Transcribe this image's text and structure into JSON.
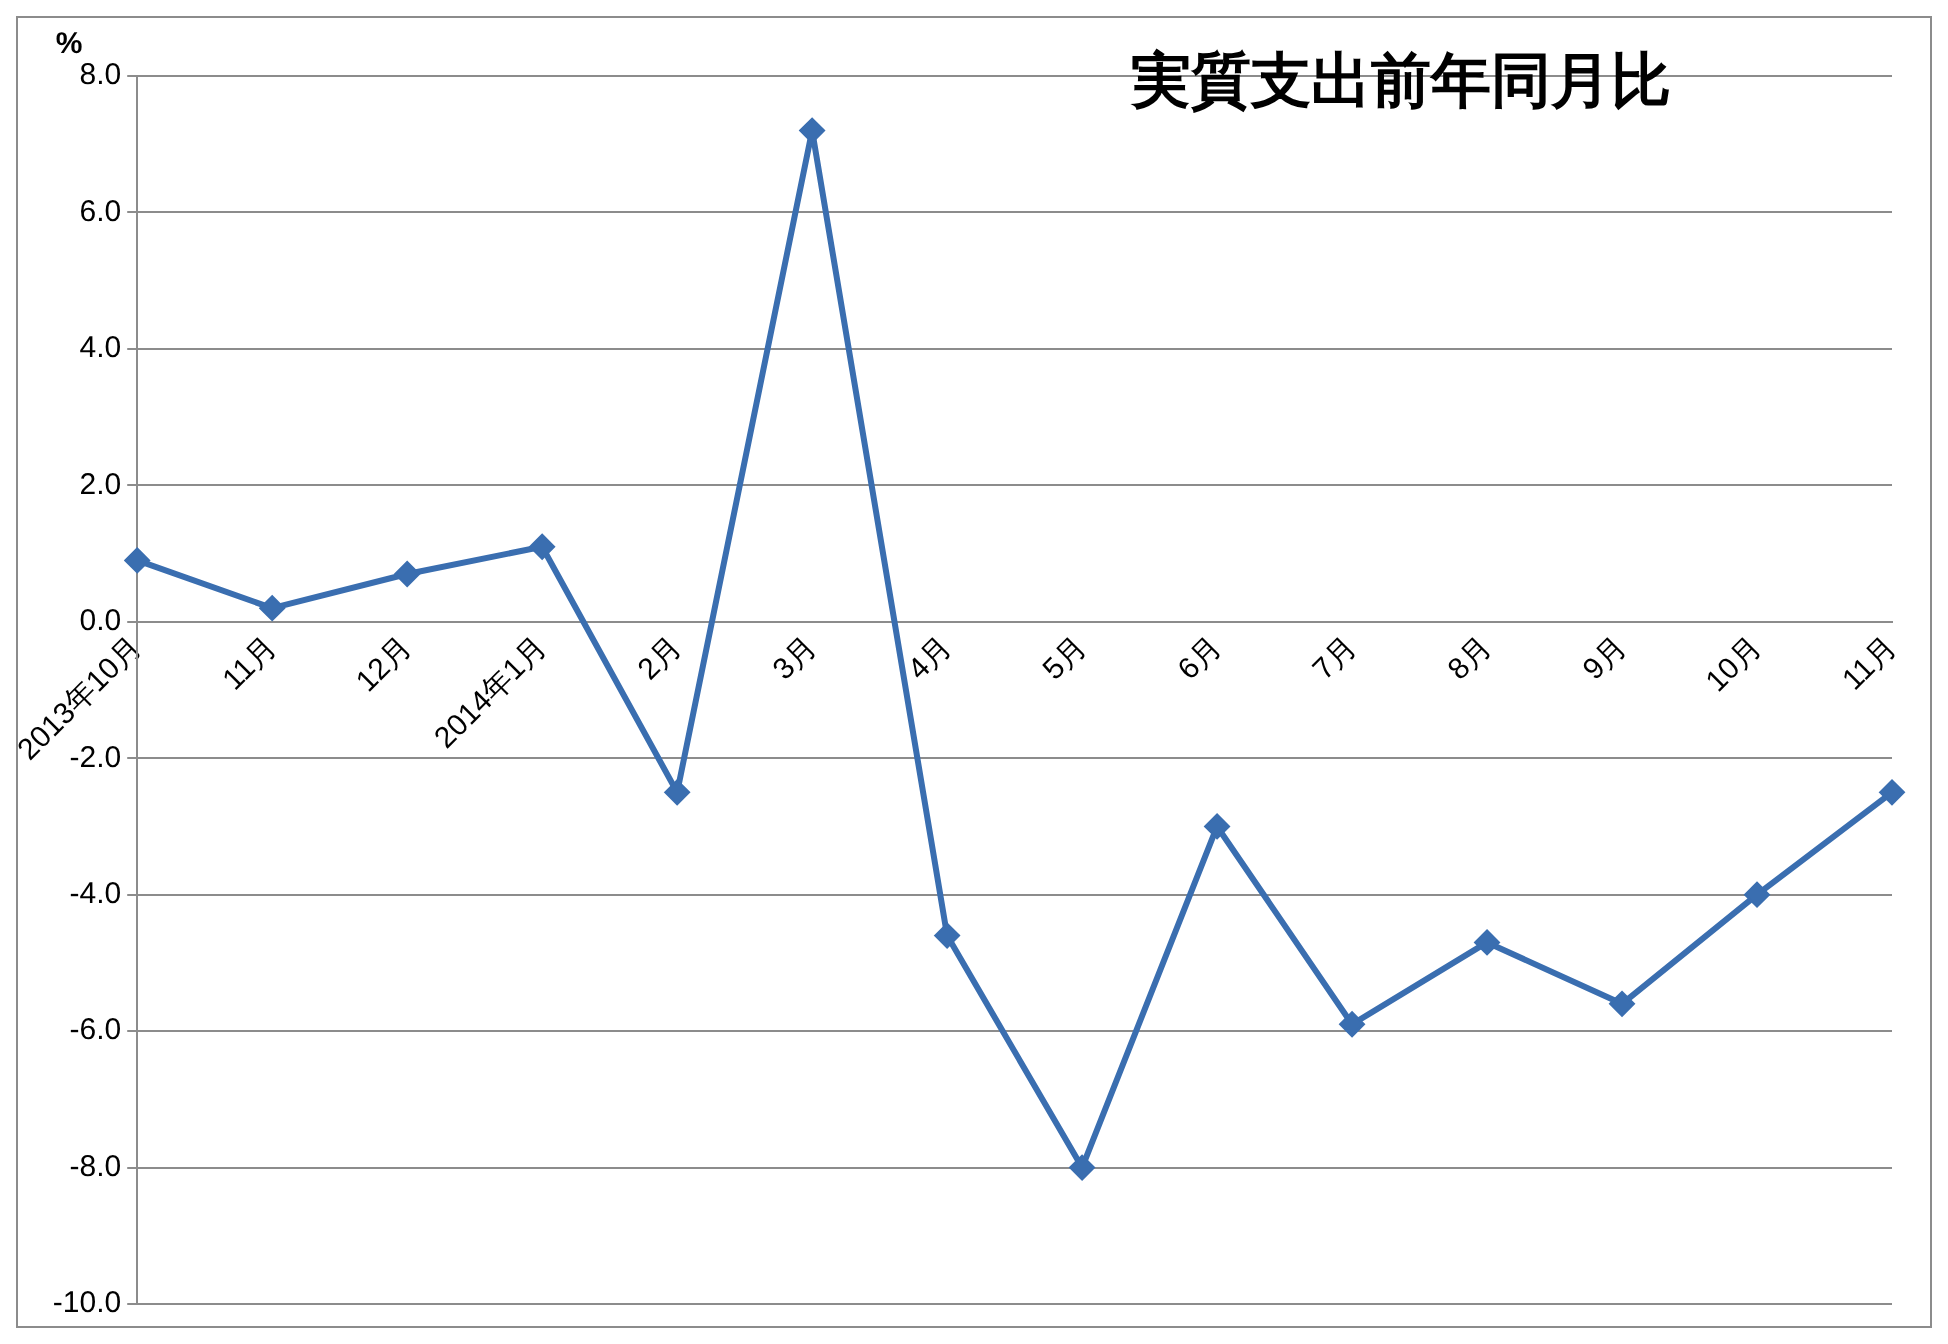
{
  "chart_data": {
    "type": "line",
    "title": "実質支出前年同月比",
    "ylabel": "%",
    "categories": [
      "2013年10月",
      "11月",
      "12月",
      "2014年1月",
      "2月",
      "3月",
      "4月",
      "5月",
      "6月",
      "7月",
      "8月",
      "9月",
      "10月",
      "11月"
    ],
    "series": [
      {
        "color": "#3a6eb0",
        "values": [
          0.9,
          0.2,
          0.7,
          1.1,
          -2.5,
          7.2,
          -4.6,
          -8.0,
          -3.0,
          -5.9,
          -4.7,
          -5.6,
          -4.0,
          -2.5
        ]
      }
    ],
    "ylim": [
      -10,
      8
    ],
    "yticks": [
      {
        "value": -10,
        "label": "-10.0"
      },
      {
        "value": -8,
        "label": "-8.0"
      },
      {
        "value": -6,
        "label": "-6.0"
      },
      {
        "value": -4,
        "label": "-4.0"
      },
      {
        "value": -2,
        "label": "-2.0"
      },
      {
        "value": 0,
        "label": "0.0"
      },
      {
        "value": 2,
        "label": "2.0"
      },
      {
        "value": 4,
        "label": "4.0"
      },
      {
        "value": 6,
        "label": "6.0"
      },
      {
        "value": 8,
        "label": "8.0"
      }
    ],
    "grid": "y",
    "legend": false,
    "marker": "diamond",
    "line_style": "solid"
  }
}
